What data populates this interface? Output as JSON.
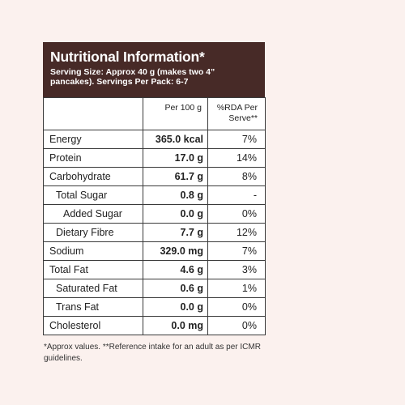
{
  "header": {
    "title": "Nutritional Information*",
    "serving_line": "Serving Size: Approx 40 g (makes two 4” pancakes). Servings Per Pack: 6-7"
  },
  "table": {
    "columns": [
      "",
      "Per 100 g",
      "%RDA Per Serve**"
    ],
    "rows": [
      {
        "name": "Energy",
        "per100": "365.0 kcal",
        "rda": "7%",
        "indent": 0
      },
      {
        "name": "Protein",
        "per100": "17.0 g",
        "rda": "14%",
        "indent": 0
      },
      {
        "name": "Carbohydrate",
        "per100": "61.7 g",
        "rda": "8%",
        "indent": 0
      },
      {
        "name": "Total Sugar",
        "per100": "0.8 g",
        "rda": "-",
        "indent": 1
      },
      {
        "name": "Added Sugar",
        "per100": "0.0 g",
        "rda": "0%",
        "indent": 2
      },
      {
        "name": "Dietary Fibre",
        "per100": "7.7 g",
        "rda": "12%",
        "indent": 1
      },
      {
        "name": "Sodium",
        "per100": "329.0 mg",
        "rda": "7%",
        "indent": 0
      },
      {
        "name": "Total Fat",
        "per100": "4.6 g",
        "rda": "3%",
        "indent": 0
      },
      {
        "name": "Saturated Fat",
        "per100": "0.6 g",
        "rda": "1%",
        "indent": 1
      },
      {
        "name": "Trans Fat",
        "per100": "0.0 g",
        "rda": "0%",
        "indent": 1
      },
      {
        "name": "Cholesterol",
        "per100": "0.0 mg",
        "rda": "0%",
        "indent": 0
      }
    ]
  },
  "footnote": "*Approx values. **Reference intake for an adult as per ICMR guidelines.",
  "colors": {
    "header_bg": "#472a27",
    "page_bg": "#fbf1ee"
  }
}
